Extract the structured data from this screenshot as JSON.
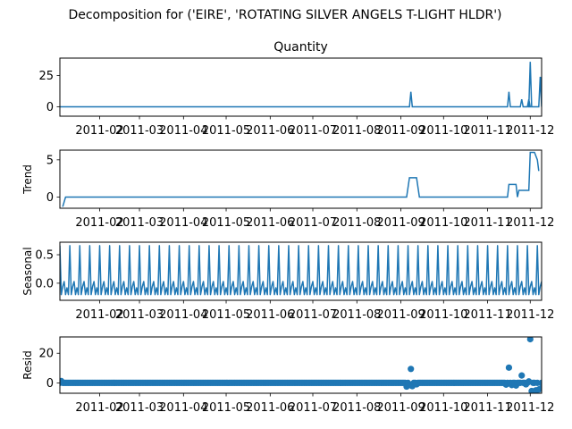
{
  "figure": {
    "suptitle": "Decomposition for ('EIRE', 'ROTATING SILVER ANGELS T-LIGHT HLDR')",
    "line_color": "#1f77b4"
  },
  "chart_data": [
    {
      "type": "line",
      "title": "Quantity",
      "ylabel": "",
      "x_range": [
        "2011-01-04",
        "2011-12-09"
      ],
      "ylim": [
        -7.5,
        39
      ],
      "yticks": [
        0,
        25
      ],
      "x_ticks": [
        "2011-02",
        "2011-03",
        "2011-04",
        "2011-05",
        "2011-06",
        "2011-07",
        "2011-08",
        "2011-09",
        "2011-10",
        "2011-11",
        "2011-12"
      ],
      "x_tick_dates": [
        "2011-02-01",
        "2011-03-01",
        "2011-04-01",
        "2011-05-01",
        "2011-06-01",
        "2011-07-01",
        "2011-08-01",
        "2011-09-01",
        "2011-10-01",
        "2011-11-01",
        "2011-12-01"
      ],
      "baseline": 0,
      "events": [
        {
          "date": "2011-09-08",
          "value": 12
        },
        {
          "date": "2011-11-16",
          "value": 12
        },
        {
          "date": "2011-11-25",
          "value": 6
        },
        {
          "date": "2011-11-30",
          "value": 6
        },
        {
          "date": "2011-12-01",
          "value": 36
        },
        {
          "date": "2011-12-08",
          "value": 24
        }
      ]
    },
    {
      "type": "line",
      "title": "",
      "ylabel": "Trend",
      "x_range": [
        "2011-01-04",
        "2011-12-09"
      ],
      "ylim": [
        -1.5,
        6.3
      ],
      "yticks": [
        0,
        5
      ],
      "x_ticks": [
        "2011-02",
        "2011-03",
        "2011-04",
        "2011-05",
        "2011-06",
        "2011-07",
        "2011-08",
        "2011-09",
        "2011-10",
        "2011-11",
        "2011-12"
      ],
      "x_tick_dates": [
        "2011-02-01",
        "2011-03-01",
        "2011-04-01",
        "2011-05-01",
        "2011-06-01",
        "2011-07-01",
        "2011-08-01",
        "2011-09-01",
        "2011-10-01",
        "2011-11-01",
        "2011-12-01"
      ],
      "points": [
        [
          "2011-01-06",
          -1.3
        ],
        [
          "2011-01-08",
          0
        ],
        [
          "2011-09-05",
          0
        ],
        [
          "2011-09-07",
          2.6
        ],
        [
          "2011-09-12",
          2.6
        ],
        [
          "2011-09-14",
          0
        ],
        [
          "2011-11-15",
          0
        ],
        [
          "2011-11-16",
          1.7
        ],
        [
          "2011-11-21",
          1.7
        ],
        [
          "2011-11-22",
          0
        ],
        [
          "2011-11-23",
          0.9
        ],
        [
          "2011-11-30",
          0.9
        ],
        [
          "2011-12-01",
          6.0
        ],
        [
          "2011-12-04",
          6.0
        ],
        [
          "2011-12-06",
          5.0
        ],
        [
          "2011-12-07",
          3.5
        ]
      ]
    },
    {
      "type": "line",
      "title": "",
      "ylabel": "Seasonal",
      "x_range": [
        "2011-01-04",
        "2011-12-09"
      ],
      "ylim": [
        -0.3,
        0.72
      ],
      "yticks": [
        0.0,
        0.5
      ],
      "ytick_labels": [
        "0.0",
        "0.5"
      ],
      "x_ticks": [
        "2011-02",
        "2011-03",
        "2011-04",
        "2011-05",
        "2011-06",
        "2011-07",
        "2011-08",
        "2011-09",
        "2011-10",
        "2011-11",
        "2011-12"
      ],
      "x_tick_dates": [
        "2011-02-01",
        "2011-03-01",
        "2011-04-01",
        "2011-05-01",
        "2011-06-01",
        "2011-07-01",
        "2011-08-01",
        "2011-09-01",
        "2011-10-01",
        "2011-11-01",
        "2011-12-01"
      ],
      "period_days": 7,
      "weekly_pattern": [
        0.66,
        -0.2,
        -0.06,
        0.03,
        -0.2,
        -0.08,
        -0.2
      ]
    },
    {
      "type": "scatter",
      "title": "",
      "ylabel": "Resid",
      "x_range": [
        "2011-01-04",
        "2011-12-09"
      ],
      "ylim": [
        -7,
        31
      ],
      "yticks": [
        0,
        20
      ],
      "x_ticks": [
        "2011-02",
        "2011-03",
        "2011-04",
        "2011-05",
        "2011-06",
        "2011-07",
        "2011-08",
        "2011-09",
        "2011-10",
        "2011-11",
        "2011-12"
      ],
      "x_tick_dates": [
        "2011-02-01",
        "2011-03-01",
        "2011-04-01",
        "2011-05-01",
        "2011-06-01",
        "2011-07-01",
        "2011-08-01",
        "2011-09-01",
        "2011-10-01",
        "2011-11-01",
        "2011-12-01"
      ],
      "baseline": 0,
      "outliers": [
        [
          "2011-01-05",
          1.2
        ],
        [
          "2011-09-05",
          -2.5
        ],
        [
          "2011-09-07",
          -1.5
        ],
        [
          "2011-09-08",
          9.4
        ],
        [
          "2011-09-09",
          -2.2
        ],
        [
          "2011-09-12",
          -1.0
        ],
        [
          "2011-11-14",
          -1.2
        ],
        [
          "2011-11-16",
          10.3
        ],
        [
          "2011-11-18",
          -1.5
        ],
        [
          "2011-11-21",
          -1.8
        ],
        [
          "2011-11-25",
          5.0
        ],
        [
          "2011-11-28",
          -1.0
        ],
        [
          "2011-11-30",
          1.0
        ],
        [
          "2011-12-01",
          29.5
        ],
        [
          "2011-12-02",
          -5.5
        ],
        [
          "2011-12-05",
          -5.0
        ],
        [
          "2011-12-07",
          -4.5
        ],
        [
          "2011-12-08",
          -4.0
        ]
      ]
    }
  ]
}
